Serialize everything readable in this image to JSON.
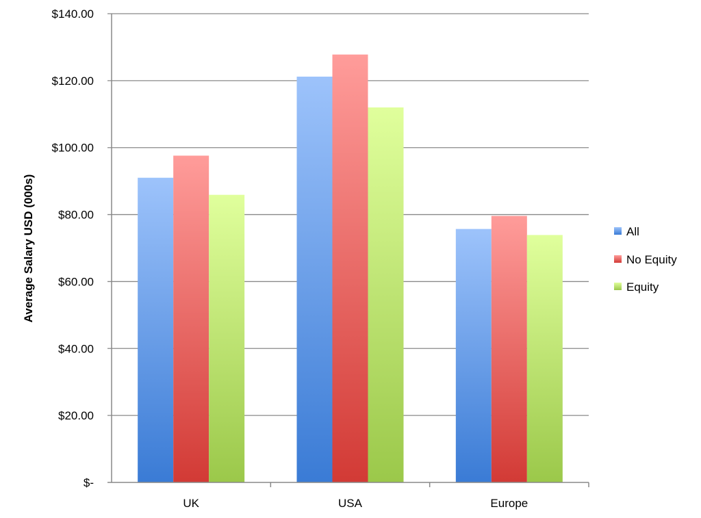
{
  "chart_data": {
    "type": "bar",
    "title": "",
    "xlabel": "",
    "ylabel": "Average Salary USD (000s)",
    "ylim": [
      0,
      140
    ],
    "yticks": [
      0,
      20,
      40,
      60,
      80,
      100,
      120,
      140
    ],
    "ytick_labels": [
      "$-",
      "$20.00",
      "$40.00",
      "$60.00",
      "$80.00",
      "$100.00",
      "$120.00",
      "$140.00"
    ],
    "grid": true,
    "legend_position": "right",
    "categories": [
      "UK",
      "USA",
      "Europe"
    ],
    "series": [
      {
        "name": "All",
        "values": [
          91.0,
          121.2,
          75.7
        ],
        "color_top": "#9dc3fb",
        "color_bottom": "#3a7bd5"
      },
      {
        "name": "No Equity",
        "values": [
          97.6,
          127.8,
          79.6
        ],
        "color_top": "#ff9c9a",
        "color_bottom": "#d23a35"
      },
      {
        "name": "Equity",
        "values": [
          85.9,
          112.0,
          73.9
        ],
        "color_top": "#e0ff9c",
        "color_bottom": "#9bc84a"
      }
    ]
  }
}
